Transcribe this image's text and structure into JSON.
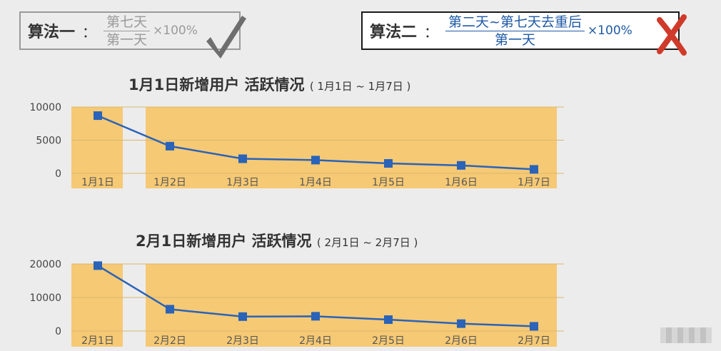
{
  "formula1": {
    "label": "算法一",
    "colon": "：",
    "numerator": "第七天",
    "denominator": "第一天",
    "times": "×100%",
    "mark_icon": "check-mark-icon",
    "color": "#9a9a9a"
  },
  "formula2": {
    "label": "算法二",
    "colon": "：",
    "numerator": "第二天~第七天去重后",
    "denominator": "第一天",
    "times": "×100%",
    "mark_icon": "cross-mark-icon",
    "color": "#1f5aa6",
    "mark_color": "#d03a2a"
  },
  "chart_data": [
    {
      "type": "line",
      "title": "1月1日新增用户 活跃情况",
      "subtitle": "( 1月1日 ~ 1月7日 )",
      "categories": [
        "1月1日",
        "1月2日",
        "1月3日",
        "1月4日",
        "1月5日",
        "1月6日",
        "1月7日"
      ],
      "values": [
        8700,
        4100,
        2200,
        2000,
        1500,
        1200,
        600
      ],
      "yticks": [
        0,
        5000,
        10000
      ],
      "ylim": [
        0,
        10000
      ],
      "line_color": "#2a63b8",
      "band_color": "#f6c974",
      "grid": true
    },
    {
      "type": "line",
      "title": "2月1日新增用户 活跃情况",
      "subtitle": "( 2月1日 ~ 2月7日 )",
      "categories": [
        "2月1日",
        "2月2日",
        "2月3日",
        "2月4日",
        "2月5日",
        "2月6日",
        "2月7日"
      ],
      "values": [
        19500,
        6500,
        4300,
        4400,
        3400,
        2200,
        1400
      ],
      "yticks": [
        0,
        10000,
        20000
      ],
      "ylim": [
        0,
        20000
      ],
      "line_color": "#2a63b8",
      "band_color": "#f6c974",
      "grid": true
    }
  ]
}
